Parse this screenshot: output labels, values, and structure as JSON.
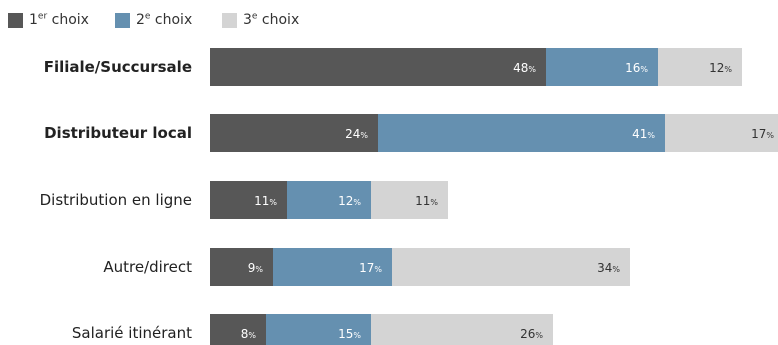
{
  "chart_data": {
    "type": "bar",
    "orientation": "horizontal",
    "stacked": true,
    "categories": [
      "Filiale/Succursale",
      "Distributeur local",
      "Distribution en ligne",
      "Autre/direct",
      "Salarié itinérant"
    ],
    "bold_categories": [
      "Filiale/Succursale",
      "Distributeur local"
    ],
    "series": [
      {
        "name": "1er choix",
        "ordinal": "1",
        "suffix": "er",
        "label_rest": " choix",
        "color": "#575757",
        "label_color": "#ffffff",
        "values": [
          48,
          24,
          11,
          9,
          8
        ]
      },
      {
        "name": "2e choix",
        "ordinal": "2",
        "suffix": "e",
        "label_rest": " choix",
        "color": "#6590b0",
        "label_color": "#ffffff",
        "values": [
          16,
          41,
          12,
          17,
          15
        ]
      },
      {
        "name": "3e choix",
        "ordinal": "3",
        "suffix": "e",
        "label_rest": " choix",
        "color": "#d4d4d4",
        "label_color": "#333333",
        "values": [
          12,
          17,
          11,
          34,
          26
        ]
      }
    ],
    "value_suffix": "%",
    "legend_position": "top-left",
    "grid": false
  }
}
